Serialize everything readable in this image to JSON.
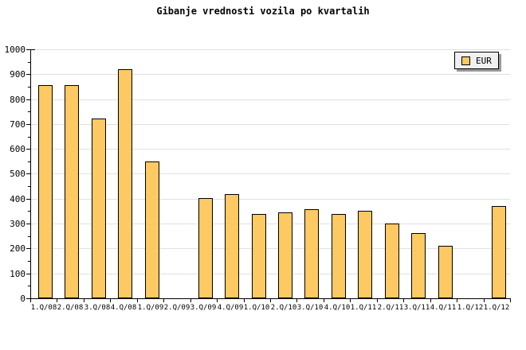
{
  "title": "Gibanje vrednosti vozila po kvartalih",
  "legend": {
    "label": "EUR"
  },
  "colors": {
    "background": "#FFFFFF",
    "bar_fill": "#FDC963",
    "bar_border": "#000000",
    "gridline": "#E0E0E0",
    "axis": "#000000",
    "text": "#000000",
    "legend_bg": "#F0F0F0",
    "legend_border": "#000000",
    "legend_shadow": "#999999"
  },
  "chart_data": {
    "type": "bar",
    "title": "Gibanje vrednosti vozila po kvartalih",
    "categories": [
      "1.Q/08",
      "2.Q/08",
      "3.Q/08",
      "4.Q/08",
      "1.Q/09",
      "2.Q/09",
      "3.Q/09",
      "4.Q/09",
      "1.Q/10",
      "2.Q/10",
      "3.Q/10",
      "4.Q/10",
      "1.Q/11",
      "2.Q/11",
      "3.Q/11",
      "4.Q/11",
      "1.Q/12",
      "1.Q/12"
    ],
    "series": [
      {
        "name": "EUR",
        "values": [
          857,
          857,
          723,
          919,
          551,
          0,
          403,
          417,
          338,
          345,
          358,
          340,
          352,
          299,
          261,
          211,
          0,
          370
        ]
      }
    ],
    "xlabel": "",
    "ylabel": "",
    "ylim": [
      0,
      1000
    ],
    "y_ticks": [
      0,
      100,
      200,
      300,
      400,
      500,
      600,
      700,
      800,
      900,
      1000
    ],
    "y_minor_tick_step": 50,
    "grid": "horizontal-major",
    "legend_position": "top-right"
  }
}
